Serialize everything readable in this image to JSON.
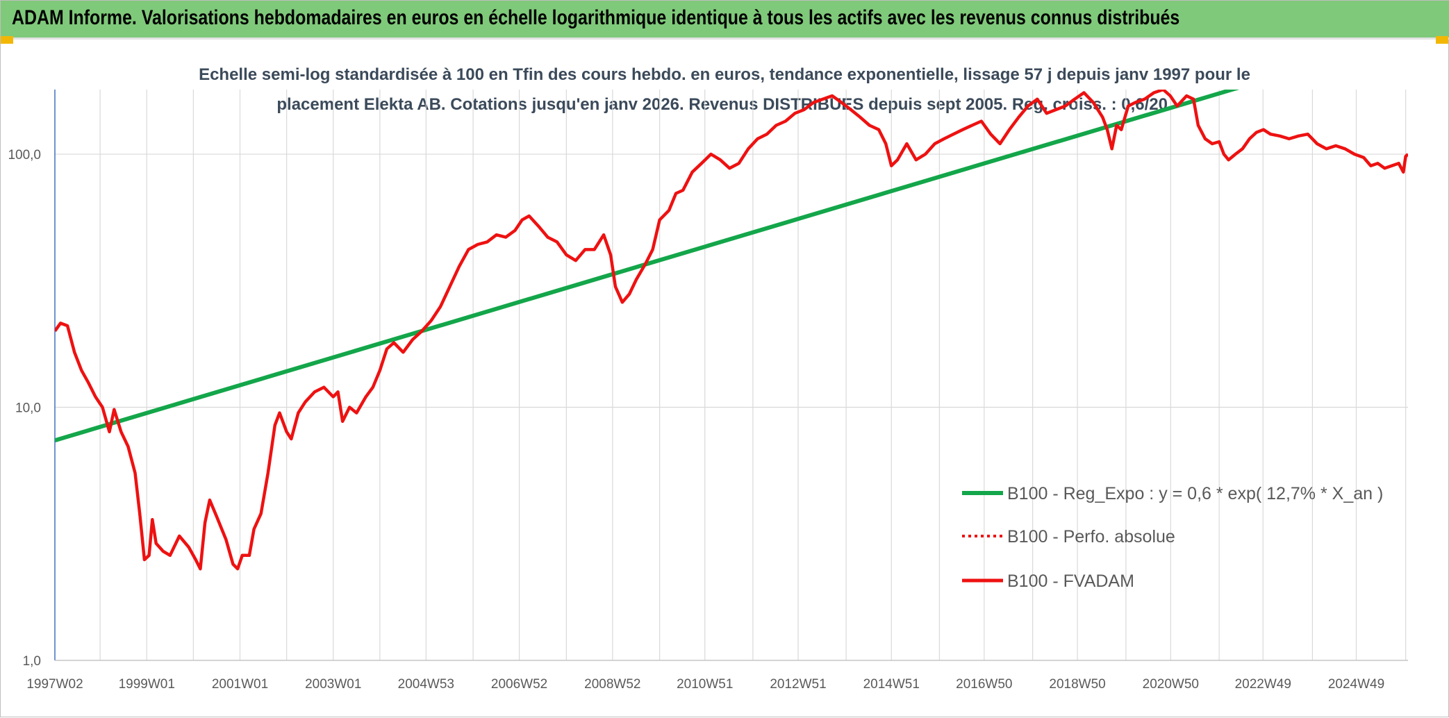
{
  "header": {
    "title": "ADAM Informe. Valorisations hebdomadaires en euros en échelle logarithmique identique à tous les actifs avec les revenus connus distribués"
  },
  "colors": {
    "header_bg": "#7fc97a",
    "corner_accent": "#f2b705",
    "trend": "#13a64a",
    "fvadam": "#ee1111",
    "grid": "#d9d9d9",
    "axis": "#4472c4",
    "subtitle": "#3b4a5a"
  },
  "chart_data": {
    "type": "line",
    "subtitle_lines": [
      "Echelle semi-log standardisée à 100 en Tfin des cours hebdo. en euros, tendance exponentielle, lissage 57 j depuis janv 1997 pour le",
      "placement Elekta AB. Cotations jusqu'en janv 2026. Revenus DISTRIBUES depuis sept 2005. Reg. croiss. : 0,6/20."
    ],
    "y_scale": "log",
    "ylim": [
      1,
      180
    ],
    "y_ticks": [
      {
        "value": 1,
        "label": "1,0"
      },
      {
        "value": 10,
        "label": "10,0"
      },
      {
        "value": 100,
        "label": "100,0"
      }
    ],
    "x_range": [
      1997.03,
      2026.05
    ],
    "x_ticks": [
      {
        "year": 1997.03,
        "label": "1997W02"
      },
      {
        "year": 1999.0,
        "label": "1999W01"
      },
      {
        "year": 2001.0,
        "label": "2001W01"
      },
      {
        "year": 2003.0,
        "label": "2003W01"
      },
      {
        "year": 2004.99,
        "label": "2004W53"
      },
      {
        "year": 2006.99,
        "label": "2006W52"
      },
      {
        "year": 2008.99,
        "label": "2008W52"
      },
      {
        "year": 2010.97,
        "label": "2010W51"
      },
      {
        "year": 2012.97,
        "label": "2012W51"
      },
      {
        "year": 2014.97,
        "label": "2014W51"
      },
      {
        "year": 2016.96,
        "label": "2016W50"
      },
      {
        "year": 2018.96,
        "label": "2018W50"
      },
      {
        "year": 2020.96,
        "label": "2020W50"
      },
      {
        "year": 2022.94,
        "label": "2022W49"
      },
      {
        "year": 2024.94,
        "label": "2024W49"
      }
    ],
    "grid": "vertical and horizontal",
    "legend_position": "bottom-right",
    "series": [
      {
        "name": "B100 - Reg_Expo : y = 0,6 * exp( 12,7% *  X_an )",
        "style": "solid-green",
        "points": [
          [
            1997.03,
            7.4
          ],
          [
            2026.05,
            290
          ]
        ]
      },
      {
        "name": "B100 - Perfo. absolue",
        "style": "dotted-red",
        "points": []
      },
      {
        "name": "B100 - FVADAM",
        "style": "solid-red",
        "points": [
          [
            1997.03,
            20
          ],
          [
            1997.15,
            21.5
          ],
          [
            1997.3,
            21
          ],
          [
            1997.45,
            16.5
          ],
          [
            1997.6,
            14
          ],
          [
            1997.75,
            12.5
          ],
          [
            1997.9,
            11
          ],
          [
            1998.05,
            10
          ],
          [
            1998.2,
            8
          ],
          [
            1998.3,
            9.8
          ],
          [
            1998.45,
            8
          ],
          [
            1998.6,
            7
          ],
          [
            1998.75,
            5.5
          ],
          [
            1998.85,
            3.8
          ],
          [
            1998.95,
            2.5
          ],
          [
            1999.05,
            2.6
          ],
          [
            1999.12,
            3.6
          ],
          [
            1999.2,
            2.9
          ],
          [
            1999.35,
            2.7
          ],
          [
            1999.5,
            2.6
          ],
          [
            1999.7,
            3.1
          ],
          [
            1999.9,
            2.8
          ],
          [
            2000.05,
            2.5
          ],
          [
            2000.15,
            2.3
          ],
          [
            2000.25,
            3.5
          ],
          [
            2000.35,
            4.3
          ],
          [
            2000.5,
            3.7
          ],
          [
            2000.7,
            3.0
          ],
          [
            2000.85,
            2.4
          ],
          [
            2000.95,
            2.3
          ],
          [
            2001.05,
            2.6
          ],
          [
            2001.2,
            2.6
          ],
          [
            2001.3,
            3.3
          ],
          [
            2001.45,
            3.8
          ],
          [
            2001.6,
            5.5
          ],
          [
            2001.75,
            8.5
          ],
          [
            2001.85,
            9.5
          ],
          [
            2002.0,
            8
          ],
          [
            2002.1,
            7.5
          ],
          [
            2002.25,
            9.5
          ],
          [
            2002.4,
            10.5
          ],
          [
            2002.6,
            11.5
          ],
          [
            2002.8,
            12
          ],
          [
            2003.0,
            11
          ],
          [
            2003.1,
            11.5
          ],
          [
            2003.2,
            8.8
          ],
          [
            2003.35,
            10
          ],
          [
            2003.5,
            9.5
          ],
          [
            2003.7,
            11
          ],
          [
            2003.85,
            12
          ],
          [
            2004.0,
            14
          ],
          [
            2004.15,
            17
          ],
          [
            2004.3,
            18
          ],
          [
            2004.5,
            16.5
          ],
          [
            2004.7,
            18.5
          ],
          [
            2004.9,
            20
          ],
          [
            2005.1,
            22
          ],
          [
            2005.3,
            25
          ],
          [
            2005.5,
            30
          ],
          [
            2005.7,
            36
          ],
          [
            2005.9,
            42
          ],
          [
            2006.1,
            44
          ],
          [
            2006.3,
            45
          ],
          [
            2006.5,
            48
          ],
          [
            2006.7,
            47
          ],
          [
            2006.9,
            50
          ],
          [
            2007.05,
            55
          ],
          [
            2007.2,
            57
          ],
          [
            2007.4,
            52
          ],
          [
            2007.6,
            47
          ],
          [
            2007.8,
            45
          ],
          [
            2008.0,
            40
          ],
          [
            2008.2,
            38
          ],
          [
            2008.4,
            42
          ],
          [
            2008.6,
            42
          ],
          [
            2008.8,
            48
          ],
          [
            2008.95,
            40
          ],
          [
            2009.05,
            30
          ],
          [
            2009.2,
            26
          ],
          [
            2009.35,
            28
          ],
          [
            2009.5,
            32
          ],
          [
            2009.7,
            37
          ],
          [
            2009.85,
            42
          ],
          [
            2010.0,
            55
          ],
          [
            2010.2,
            60
          ],
          [
            2010.35,
            70
          ],
          [
            2010.5,
            72
          ],
          [
            2010.7,
            85
          ],
          [
            2010.9,
            92
          ],
          [
            2011.1,
            100
          ],
          [
            2011.3,
            95
          ],
          [
            2011.5,
            88
          ],
          [
            2011.7,
            92
          ],
          [
            2011.9,
            105
          ],
          [
            2012.1,
            115
          ],
          [
            2012.3,
            120
          ],
          [
            2012.5,
            130
          ],
          [
            2012.7,
            135
          ],
          [
            2012.9,
            145
          ],
          [
            2013.1,
            150
          ],
          [
            2013.3,
            160
          ],
          [
            2013.5,
            165
          ],
          [
            2013.7,
            170
          ],
          [
            2013.9,
            160
          ],
          [
            2014.1,
            150
          ],
          [
            2014.3,
            140
          ],
          [
            2014.5,
            130
          ],
          [
            2014.7,
            125
          ],
          [
            2014.85,
            110
          ],
          [
            2014.97,
            90
          ],
          [
            2015.1,
            95
          ],
          [
            2015.3,
            110
          ],
          [
            2015.5,
            95
          ],
          [
            2015.7,
            100
          ],
          [
            2015.9,
            110
          ],
          [
            2016.1,
            115
          ],
          [
            2016.3,
            120
          ],
          [
            2016.5,
            125
          ],
          [
            2016.7,
            130
          ],
          [
            2016.9,
            135
          ],
          [
            2017.1,
            120
          ],
          [
            2017.3,
            110
          ],
          [
            2017.5,
            125
          ],
          [
            2017.7,
            140
          ],
          [
            2017.9,
            155
          ],
          [
            2018.1,
            165
          ],
          [
            2018.3,
            145
          ],
          [
            2018.5,
            150
          ],
          [
            2018.7,
            155
          ],
          [
            2018.9,
            165
          ],
          [
            2019.1,
            175
          ],
          [
            2019.3,
            160
          ],
          [
            2019.5,
            140
          ],
          [
            2019.6,
            125
          ],
          [
            2019.7,
            105
          ],
          [
            2019.8,
            130
          ],
          [
            2019.9,
            125
          ],
          [
            2020.05,
            155
          ],
          [
            2020.2,
            160
          ],
          [
            2020.4,
            165
          ],
          [
            2020.6,
            175
          ],
          [
            2020.8,
            180
          ],
          [
            2020.95,
            170
          ],
          [
            2021.1,
            155
          ],
          [
            2021.3,
            170
          ],
          [
            2021.45,
            165
          ],
          [
            2021.55,
            130
          ],
          [
            2021.7,
            115
          ],
          [
            2021.85,
            110
          ],
          [
            2022.0,
            112
          ],
          [
            2022.1,
            100
          ],
          [
            2022.2,
            95
          ],
          [
            2022.35,
            100
          ],
          [
            2022.5,
            105
          ],
          [
            2022.65,
            115
          ],
          [
            2022.8,
            122
          ],
          [
            2022.95,
            125
          ],
          [
            2023.1,
            120
          ],
          [
            2023.3,
            118
          ],
          [
            2023.5,
            115
          ],
          [
            2023.7,
            118
          ],
          [
            2023.9,
            120
          ],
          [
            2024.1,
            110
          ],
          [
            2024.3,
            105
          ],
          [
            2024.5,
            108
          ],
          [
            2024.7,
            105
          ],
          [
            2024.9,
            100
          ],
          [
            2025.1,
            97
          ],
          [
            2025.25,
            90
          ],
          [
            2025.4,
            92
          ],
          [
            2025.55,
            88
          ],
          [
            2025.7,
            90
          ],
          [
            2025.85,
            92
          ],
          [
            2025.95,
            85
          ],
          [
            2026.0,
            98
          ],
          [
            2026.05,
            100
          ]
        ]
      }
    ]
  }
}
